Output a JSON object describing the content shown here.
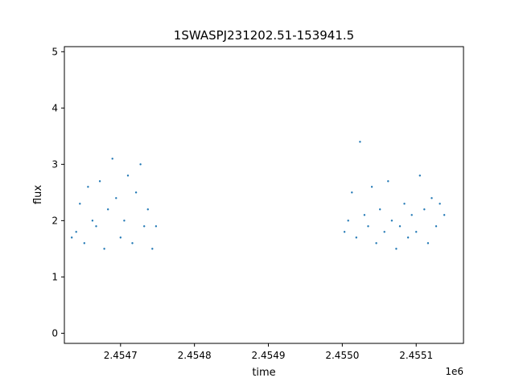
{
  "chart_data": {
    "type": "scatter",
    "title": "1SWASPJ231202.51-153941.5",
    "xlabel": "time",
    "ylabel": "flux",
    "x_offset_label": "1e6",
    "xlim": [
      2454624.0,
      2455164.0
    ],
    "ylim": [
      -0.18,
      5.09
    ],
    "x_ticks": [
      2454700,
      2454800,
      2454900,
      2455000,
      2455100
    ],
    "x_tick_labels": [
      "2.4547",
      "2.4548",
      "2.4549",
      "2.4550",
      "2.4551"
    ],
    "y_ticks": [
      0,
      1,
      2,
      3,
      4,
      5
    ],
    "y_tick_labels": [
      "0",
      "1",
      "2",
      "3",
      "4",
      "5"
    ],
    "grid": false,
    "point_color": "#1f77b4",
    "series": [
      {
        "x": [
          2454634,
          2454640,
          2454645,
          2454651,
          2454656,
          2454662,
          2454667,
          2454672,
          2454678,
          2454683,
          2454689,
          2454694,
          2454700,
          2454705,
          2454710,
          2454716,
          2454721,
          2454727,
          2454732,
          2454737,
          2454743,
          2454748,
          2455003,
          2455008,
          2455013,
          2455019,
          2455024,
          2455030,
          2455035,
          2455040,
          2455046,
          2455051,
          2455057,
          2455062,
          2455067,
          2455073,
          2455078,
          2455084,
          2455089,
          2455094,
          2455100,
          2455105,
          2455111,
          2455116,
          2455121,
          2455127,
          2455132,
          2455138
        ],
        "y": [
          1.7,
          1.8,
          2.3,
          1.6,
          2.6,
          2.0,
          1.9,
          2.7,
          1.5,
          2.2,
          3.1,
          2.4,
          1.7,
          2.0,
          2.8,
          1.6,
          2.5,
          3.0,
          1.9,
          2.2,
          1.5,
          1.9,
          1.8,
          2.0,
          2.5,
          1.7,
          3.4,
          2.1,
          1.9,
          2.6,
          1.6,
          2.2,
          1.8,
          2.7,
          2.0,
          1.5,
          1.9,
          2.3,
          1.7,
          2.1,
          1.8,
          2.8,
          2.2,
          1.6,
          2.4,
          1.9,
          2.3,
          2.1
        ]
      }
    ]
  }
}
